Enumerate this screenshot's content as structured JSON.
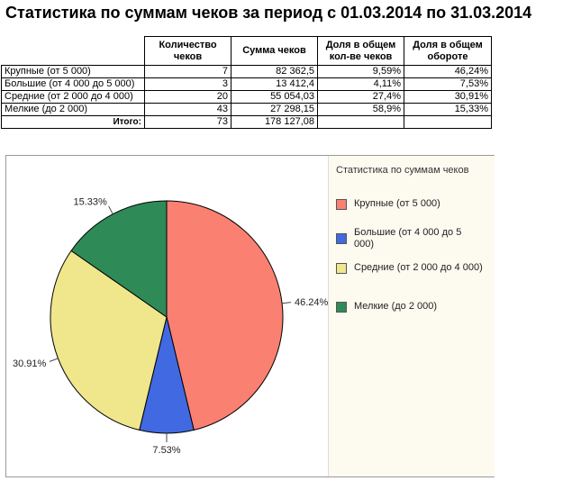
{
  "title": "Статистика по суммам чеков за период с 01.03.2014 по 31.03.2014",
  "table": {
    "headers": [
      "",
      "Количество чеков",
      "Сумма чеков",
      "Доля в общем кол-ве чеков",
      "Доля в общем обороте"
    ],
    "rows": [
      {
        "label": "Крупные (от 5 000)",
        "count": "7",
        "sum": "82 362,5",
        "share_count": "9,59%",
        "share_turnover": "46,24%"
      },
      {
        "label": "Большие (от 4 000 до 5 000)",
        "count": "3",
        "sum": "13 412,4",
        "share_count": "4,11%",
        "share_turnover": "7,53%"
      },
      {
        "label": "Средние (от 2 000 до 4 000)",
        "count": "20",
        "sum": "55 054,03",
        "share_count": "27,4%",
        "share_turnover": "30,91%"
      },
      {
        "label": "Мелкие (до 2 000)",
        "count": "43",
        "sum": "27 298,15",
        "share_count": "58,9%",
        "share_turnover": "15,33%"
      }
    ],
    "total": {
      "label": "Итого:",
      "count": "73",
      "sum": "178 127,08",
      "share_count": "",
      "share_turnover": ""
    }
  },
  "chart_data": {
    "type": "pie",
    "title": "Статистика по суммам чеков",
    "categories": [
      "Крупные (от 5 000)",
      "Большие (от 4 000 до 5 000)",
      "Средние (от 2 000 до 4 000)",
      "Мелкие (до 2 000)"
    ],
    "values": [
      46.24,
      7.53,
      30.91,
      15.33
    ],
    "labels": [
      "46.24%",
      "7.53%",
      "30.91%",
      "15.33%"
    ],
    "colors": [
      "#fa8072",
      "#4169e1",
      "#f0e68c",
      "#2e8b57"
    ],
    "start": "12 o'clock",
    "direction": "clockwise",
    "legend": "right"
  }
}
